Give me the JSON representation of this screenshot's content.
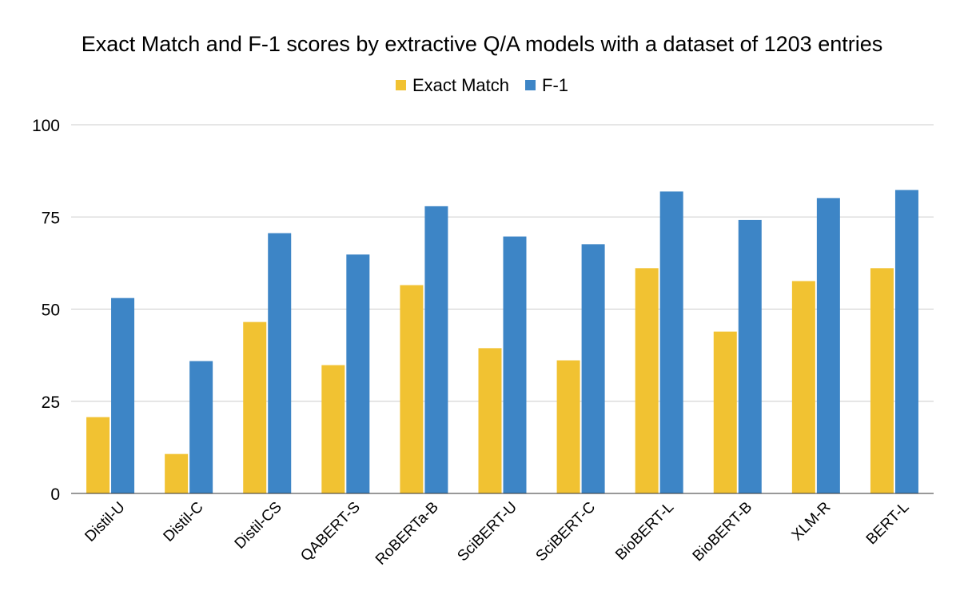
{
  "chart_data": {
    "type": "bar",
    "title": "Exact Match and F-1 scores by extractive Q/A models with a dataset of 1203 entries",
    "xlabel": "",
    "ylabel": "",
    "ylim": [
      0,
      100
    ],
    "yticks": [
      0,
      25,
      50,
      75,
      100
    ],
    "grid": true,
    "legend_position": "top-center",
    "categories": [
      "Distil-U",
      "Distil-C",
      "Distil-CS",
      "QABERT-S",
      "RoBERTa-B",
      "SciBERT-U",
      "SciBERT-C",
      "BioBERT-L",
      "BioBERT-B",
      "XLM-R",
      "BERT-L"
    ],
    "series": [
      {
        "name": "Exact Match",
        "color": "#f1c232",
        "values": [
          20.7,
          10.7,
          46.5,
          34.8,
          56.5,
          39.4,
          36.1,
          61.1,
          43.9,
          57.6,
          61.1
        ]
      },
      {
        "name": "F-1",
        "color": "#3d85c6",
        "values": [
          53.0,
          35.9,
          70.6,
          64.8,
          77.9,
          69.7,
          67.6,
          81.9,
          74.2,
          80.1,
          82.3
        ]
      }
    ]
  }
}
